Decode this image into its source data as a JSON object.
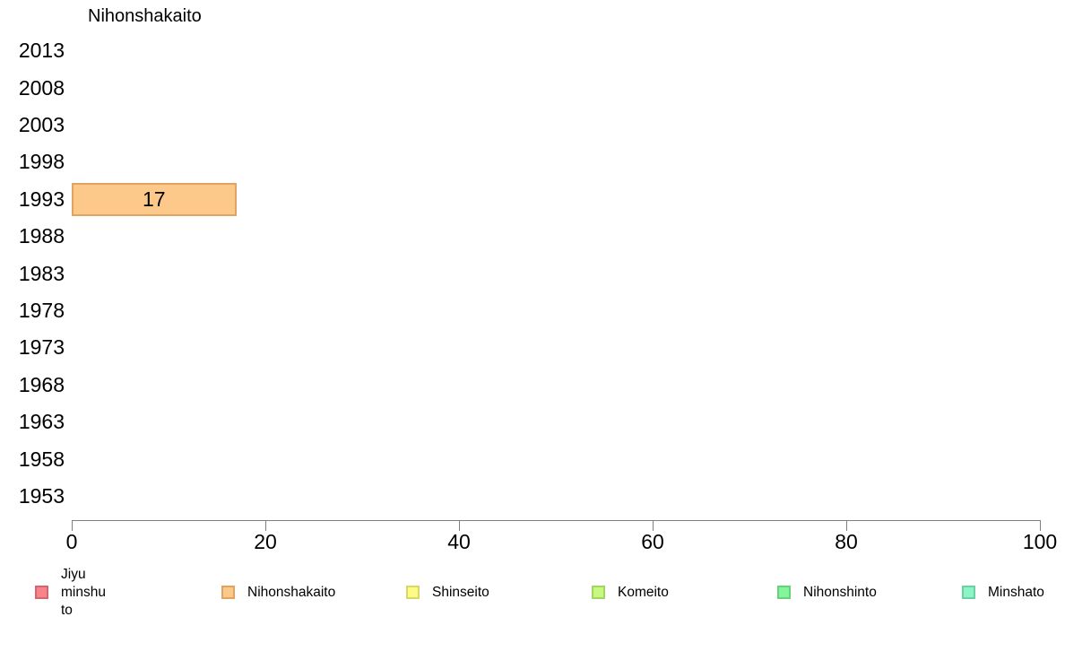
{
  "chart_data": {
    "type": "bar",
    "orientation": "horizontal",
    "title": "Nihonshakaito",
    "categories": [
      "2013",
      "2008",
      "2003",
      "1998",
      "1993",
      "1988",
      "1983",
      "1978",
      "1973",
      "1968",
      "1963",
      "1958",
      "1953"
    ],
    "values": [
      null,
      null,
      null,
      null,
      17,
      null,
      null,
      null,
      null,
      null,
      null,
      null,
      null
    ],
    "value_labels_shown": true,
    "xlim": [
      0,
      100
    ],
    "x_ticks": [
      "0",
      "20",
      "40",
      "60",
      "80",
      "100"
    ],
    "grid": false,
    "series_color": "#FDC98A",
    "series_border_color": "#DFA462",
    "axis_color": "#808080",
    "text_color": "#000000",
    "background_color": "#FFFFFF",
    "legend_position": "bottom",
    "legend": [
      {
        "label": "Jiyu minshu to",
        "color": "#F8838B",
        "border_color": "#D4666E"
      },
      {
        "label": "Nihonshakaito",
        "color": "#FDC98A",
        "border_color": "#DFA462"
      },
      {
        "label": "Shinseito",
        "color": "#FCFC84",
        "border_color": "#D8D868"
      },
      {
        "label": "Komeito",
        "color": "#C6F980",
        "border_color": "#A3D562"
      },
      {
        "label": "Nihonshinto",
        "color": "#85F59B",
        "border_color": "#66D27D"
      },
      {
        "label": "Minshato",
        "color": "#8DF4C7",
        "border_color": "#6BD1A3"
      }
    ]
  }
}
